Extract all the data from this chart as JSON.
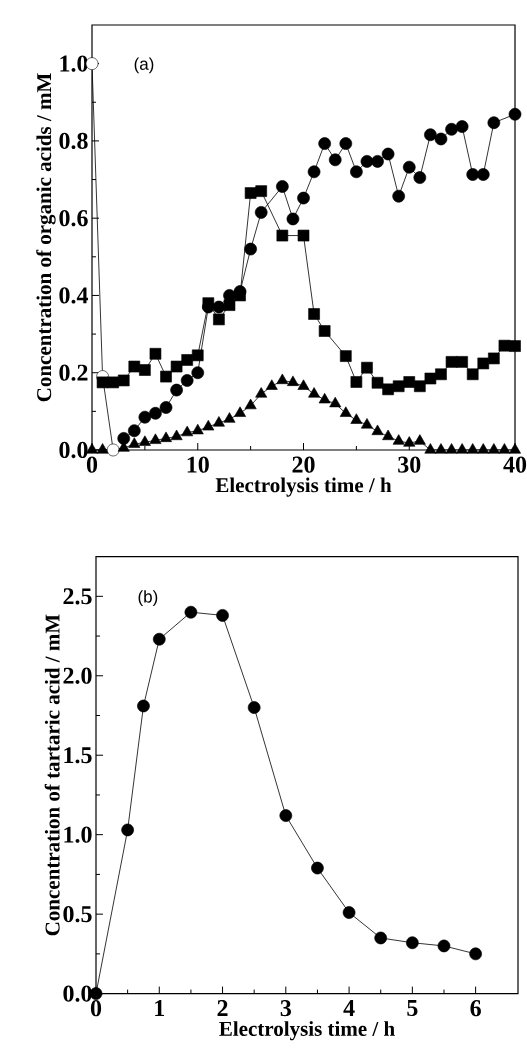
{
  "chart_data": [
    {
      "type": "line",
      "xlabel": "Electrolysis time / h",
      "ylabel": "Concentration of organic acids / mM",
      "annotations": [
        "(a)"
      ],
      "xlim": [
        0,
        40
      ],
      "ylim": [
        0,
        1.1
      ],
      "xticks": [
        0,
        10,
        20,
        30,
        40
      ],
      "yticks": [
        {
          "value": 0,
          "label": "0.0"
        },
        {
          "value": 0.2,
          "label": "0.2"
        },
        {
          "value": 0.4,
          "label": "0.4"
        },
        {
          "value": 0.6,
          "label": "0.6"
        },
        {
          "value": 0.8,
          "label": "0.8"
        },
        {
          "value": 1.0,
          "label": "1.0"
        }
      ],
      "grid": false,
      "line_style": "solid",
      "series": [
        {
          "color": "#ffffff",
          "marker": "circle",
          "x": [
            0,
            1,
            2
          ],
          "values": [
            1.0,
            0.19,
            0.0
          ]
        },
        {
          "color": "#000000",
          "marker": "square",
          "x": [
            1,
            2,
            3,
            4,
            5,
            6,
            7,
            8,
            9,
            10,
            11,
            12,
            13,
            14,
            15,
            16,
            18,
            20,
            21,
            22,
            24,
            25,
            26,
            27,
            28,
            29,
            30,
            31,
            32,
            33,
            34,
            35,
            36,
            37,
            38,
            39,
            40
          ],
          "values": [
            0.175,
            0.175,
            0.18,
            0.216,
            0.207,
            0.249,
            0.19,
            0.216,
            0.233,
            0.245,
            0.38,
            0.338,
            0.375,
            0.4,
            0.665,
            0.67,
            0.555,
            0.555,
            0.352,
            0.308,
            0.243,
            0.176,
            0.213,
            0.174,
            0.157,
            0.165,
            0.176,
            0.165,
            0.185,
            0.196,
            0.228,
            0.228,
            0.196,
            0.224,
            0.237,
            0.27,
            0.269
          ]
        },
        {
          "color": "#000000",
          "marker": "circle",
          "x": [
            3,
            4,
            5,
            6,
            7,
            8,
            9,
            10,
            11,
            12,
            13,
            14,
            15,
            16,
            18,
            19,
            20,
            21,
            22,
            23,
            24,
            25,
            26,
            27,
            28,
            29,
            30,
            31,
            32,
            33,
            34,
            35,
            36,
            37,
            38,
            40
          ],
          "values": [
            0.03,
            0.05,
            0.085,
            0.095,
            0.11,
            0.155,
            0.18,
            0.2,
            0.37,
            0.37,
            0.4,
            0.41,
            0.52,
            0.615,
            0.682,
            0.598,
            0.652,
            0.72,
            0.793,
            0.751,
            0.793,
            0.72,
            0.747,
            0.747,
            0.766,
            0.657,
            0.732,
            0.705,
            0.816,
            0.805,
            0.83,
            0.837,
            0.713,
            0.713,
            0.847,
            0.869
          ]
        },
        {
          "color": "#000000",
          "marker": "triangle",
          "x": [
            0,
            1,
            3,
            4,
            5,
            6,
            7,
            8,
            9,
            10,
            11,
            12,
            13,
            14,
            15,
            16,
            17,
            18,
            19,
            20,
            21,
            22,
            23,
            24,
            25,
            26,
            27,
            28,
            29,
            30,
            31,
            32,
            33,
            34,
            35,
            36,
            37,
            38,
            39,
            40
          ],
          "values": [
            0,
            0,
            0.005,
            0.015,
            0.02,
            0.025,
            0.03,
            0.035,
            0.045,
            0.05,
            0.06,
            0.07,
            0.08,
            0.095,
            0.115,
            0.145,
            0.165,
            0.18,
            0.175,
            0.165,
            0.145,
            0.13,
            0.12,
            0.095,
            0.077,
            0.065,
            0.048,
            0.035,
            0.023,
            0.018,
            0.023,
            0,
            0,
            0,
            0,
            0,
            0,
            0,
            0,
            0
          ]
        }
      ]
    },
    {
      "type": "line",
      "xlabel": "Electrolysis time / h",
      "ylabel": "Concentration of tartaric acid / mM",
      "annotations": [
        "(b)"
      ],
      "xlim": [
        0,
        6.67
      ],
      "ylim": [
        0,
        2.75
      ],
      "xticks": [
        0,
        1,
        2,
        3,
        4,
        5,
        6
      ],
      "yticks": [
        {
          "value": 0,
          "label": "0.0"
        },
        {
          "value": 0.5,
          "label": "0.5"
        },
        {
          "value": 1.0,
          "label": "1.0"
        },
        {
          "value": 1.5,
          "label": "1.5"
        },
        {
          "value": 2.0,
          "label": "2.0"
        },
        {
          "value": 2.5,
          "label": "2.5"
        }
      ],
      "grid": false,
      "line_style": "solid",
      "series": [
        {
          "color": "#000000",
          "marker": "circle",
          "x": [
            0,
            0.5,
            0.75,
            1.0,
            1.5,
            2.0,
            2.5,
            3.0,
            3.5,
            4.0,
            4.5,
            5.0,
            5.5,
            6.0
          ],
          "values": [
            0,
            1.03,
            1.81,
            2.23,
            2.4,
            2.38,
            1.8,
            1.12,
            0.79,
            0.51,
            0.35,
            0.32,
            0.3,
            0.25
          ]
        }
      ]
    }
  ]
}
